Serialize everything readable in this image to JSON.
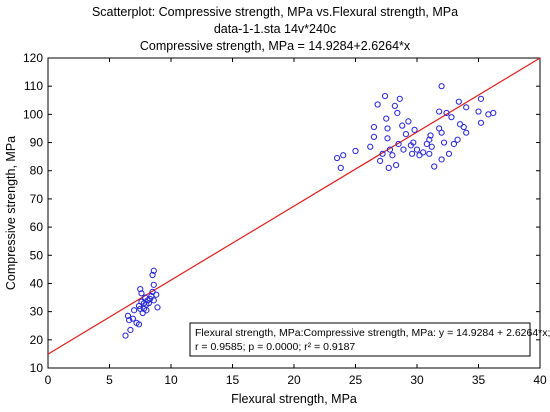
{
  "chart_data": {
    "type": "scatter",
    "title": "Scatterplot:   Compressive strength, MPa vs.Flexural strength, MPa",
    "subtitle": "data-1-1.sta 14v*240c",
    "equation": "Compressive strength, MPa = 14.9284+2.6264*x",
    "xlabel": "Flexural strength, MPa",
    "ylabel": "Compressive strength, MPa",
    "xlim": [
      0,
      40
    ],
    "ylim": [
      10,
      120
    ],
    "xticks": [
      0,
      5,
      10,
      15,
      20,
      25,
      30,
      35,
      40
    ],
    "yticks": [
      10,
      20,
      30,
      40,
      50,
      60,
      70,
      80,
      90,
      100,
      110,
      120
    ],
    "grid": false,
    "point_color": "#2323d6",
    "line_color": "#e21b1b",
    "fit": {
      "intercept": 14.9284,
      "slope": 2.6264
    },
    "legend": {
      "position": "bottom-right",
      "line1": "Flexural strength, MPa:Compressive strength, MPa:   y = 14.9284 + 2.6264*x;",
      "line2": "r = 0.9585; p = 0.0000; r² = 0.9187"
    },
    "points": [
      [
        6.3,
        21.5
      ],
      [
        6.7,
        23.5
      ],
      [
        6.6,
        27.0
      ],
      [
        6.9,
        27.5
      ],
      [
        7.2,
        26.0
      ],
      [
        6.5,
        28.5
      ],
      [
        7.4,
        25.5
      ],
      [
        7.0,
        30.5
      ],
      [
        7.5,
        31.0
      ],
      [
        7.7,
        29.5
      ],
      [
        7.8,
        31.0
      ],
      [
        8.0,
        30.5
      ],
      [
        7.4,
        32.0
      ],
      [
        7.6,
        33.5
      ],
      [
        7.8,
        33.0
      ],
      [
        8.0,
        32.5
      ],
      [
        8.2,
        33.0
      ],
      [
        8.3,
        34.5
      ],
      [
        7.6,
        36.5
      ],
      [
        7.9,
        35.0
      ],
      [
        8.1,
        34.0
      ],
      [
        8.4,
        35.5
      ],
      [
        8.6,
        34.0
      ],
      [
        8.5,
        37.0
      ],
      [
        7.5,
        38.0
      ],
      [
        8.6,
        39.5
      ],
      [
        8.8,
        36.0
      ],
      [
        8.9,
        31.5
      ],
      [
        8.5,
        43.0
      ],
      [
        8.6,
        44.5
      ],
      [
        23.5,
        84.5
      ],
      [
        24.0,
        85.5
      ],
      [
        23.8,
        81.0
      ],
      [
        25.0,
        87.0
      ],
      [
        26.2,
        88.5
      ],
      [
        26.5,
        92.0
      ],
      [
        26.5,
        95.5
      ],
      [
        26.8,
        103.5
      ],
      [
        27.0,
        83.5
      ],
      [
        27.2,
        86.0
      ],
      [
        27.4,
        106.5
      ],
      [
        27.5,
        98.5
      ],
      [
        27.6,
        95.0
      ],
      [
        27.6,
        91.5
      ],
      [
        27.8,
        87.5
      ],
      [
        27.7,
        81.0
      ],
      [
        28.0,
        85.5
      ],
      [
        28.3,
        82.0
      ],
      [
        28.2,
        103.0
      ],
      [
        28.4,
        100.5
      ],
      [
        28.6,
        105.5
      ],
      [
        28.8,
        96.0
      ],
      [
        28.5,
        89.5
      ],
      [
        28.9,
        87.5
      ],
      [
        29.1,
        93.0
      ],
      [
        29.3,
        97.5
      ],
      [
        29.5,
        89.0
      ],
      [
        29.7,
        90.0
      ],
      [
        29.8,
        94.5
      ],
      [
        29.6,
        86.0
      ],
      [
        30.0,
        87.5
      ],
      [
        30.2,
        85.5
      ],
      [
        30.5,
        86.5
      ],
      [
        30.8,
        89.5
      ],
      [
        31.0,
        91.0
      ],
      [
        31.1,
        92.5
      ],
      [
        31.2,
        88.5
      ],
      [
        31.0,
        86.0
      ],
      [
        31.4,
        81.5
      ],
      [
        31.8,
        95.0
      ],
      [
        31.8,
        101.0
      ],
      [
        32.0,
        93.5
      ],
      [
        32.2,
        90.0
      ],
      [
        32.0,
        110.0
      ],
      [
        32.4,
        100.5
      ],
      [
        32.6,
        86.0
      ],
      [
        32.8,
        99.0
      ],
      [
        33.0,
        89.5
      ],
      [
        33.3,
        91.0
      ],
      [
        33.4,
        104.5
      ],
      [
        33.5,
        96.5
      ],
      [
        33.8,
        95.5
      ],
      [
        34.0,
        102.5
      ],
      [
        34.0,
        93.5
      ],
      [
        35.0,
        101.0
      ],
      [
        35.2,
        97.0
      ],
      [
        35.2,
        105.5
      ],
      [
        35.8,
        100.0
      ],
      [
        36.2,
        100.5
      ],
      [
        32.0,
        84.0
      ]
    ]
  }
}
